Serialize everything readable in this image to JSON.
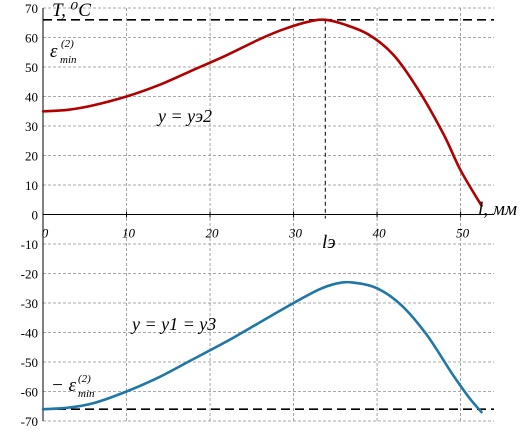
{
  "chart_data": {
    "type": "line",
    "ylabel": "T,⁰C",
    "xlabel": "l, мм",
    "x_ticks": [
      0,
      10,
      20,
      30,
      40,
      50
    ],
    "y_ticks": [
      70,
      60,
      50,
      40,
      30,
      20,
      10,
      0,
      -10,
      -20,
      -30,
      -40,
      -50,
      -60,
      -70
    ],
    "xlim": [
      0,
      54
    ],
    "ylim": [
      -70,
      70
    ],
    "grid": true,
    "series": [
      {
        "label": "y = yэ2",
        "color": "#b00000",
        "x": [
          0,
          3,
          6,
          10,
          14,
          18,
          22,
          26,
          29,
          32,
          33.8,
          36,
          39,
          42,
          45,
          48,
          50,
          52.5
        ],
        "y": [
          35,
          35.5,
          37,
          40,
          44,
          49,
          54,
          59.5,
          63,
          65.5,
          66,
          64.5,
          61,
          54,
          42,
          27,
          15,
          3
        ]
      },
      {
        "label": "y = y1 = y3",
        "color": "#1f77a8",
        "x": [
          0,
          3,
          6,
          10,
          14,
          18,
          22,
          26,
          30,
          33,
          35,
          37,
          40,
          43,
          46,
          49,
          51,
          52.5
        ],
        "y": [
          -66,
          -65.5,
          -64,
          -60,
          -55,
          -49,
          -43,
          -36.5,
          -30,
          -25.5,
          -23.5,
          -23,
          -25,
          -31,
          -41,
          -54,
          -62,
          -67
        ]
      }
    ],
    "reference_lines": [
      {
        "label": "ε(2)min",
        "y": 66,
        "style": "dashed"
      },
      {
        "label": "−ε(2)min",
        "y": -66,
        "style": "dashed"
      },
      {
        "label": "lэ",
        "x": 33.8,
        "style": "dashed-vertical"
      }
    ]
  },
  "labels": {
    "y_title": "T, ⁰C",
    "x_title": "l, мм",
    "eps_pos": "ε",
    "eps_neg": "− ε",
    "eps_sup": "(2)",
    "eps_sub": "min",
    "l_e": "lэ",
    "curve_top": "y = yэ2",
    "curve_bottom": "y = y1 = y3"
  }
}
